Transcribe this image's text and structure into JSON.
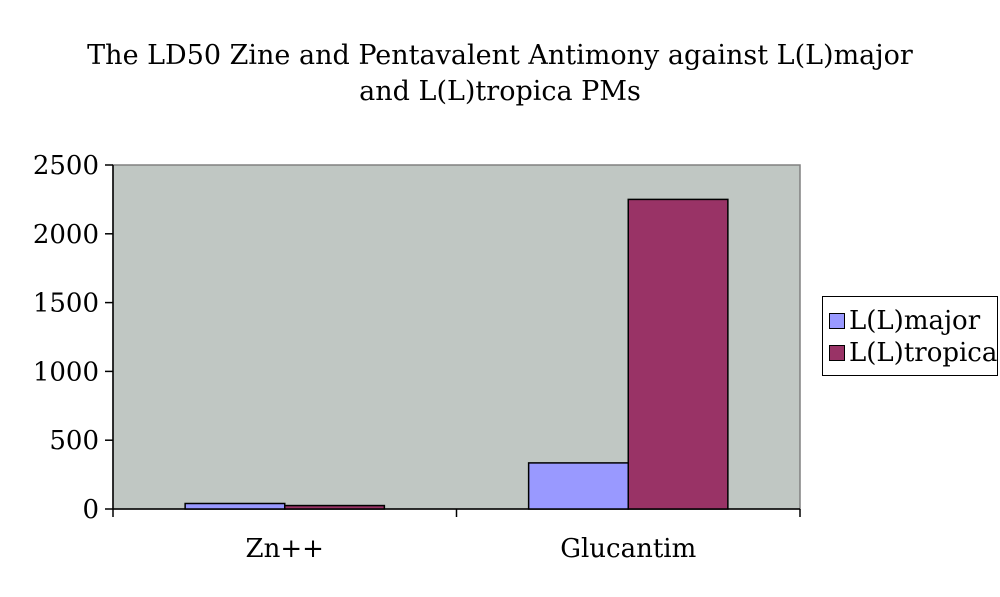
{
  "chart_data": {
    "type": "bar",
    "title": "The LD50 Zine and Pentavalent Antimony against L(L)major and L(L)tropica PMs",
    "title_lines": [
      "The LD50 Zine and Pentavalent Antimony against L(L)major",
      "and L(L)tropica PMs"
    ],
    "categories": [
      "Zn++",
      "Glucantim"
    ],
    "series": [
      {
        "name": "L(L)major",
        "values": [
          40,
          335
        ],
        "color": "#9999ff"
      },
      {
        "name": "L(L)tropica",
        "values": [
          25,
          2250
        ],
        "color": "#993366"
      }
    ],
    "ylim": [
      0,
      2500
    ],
    "yticks": [
      0,
      500,
      1000,
      1500,
      2000,
      2500
    ],
    "xlabel": "",
    "ylabel": "",
    "plot_background": "#c0c7c3",
    "grid": false,
    "legend_position": "right"
  }
}
